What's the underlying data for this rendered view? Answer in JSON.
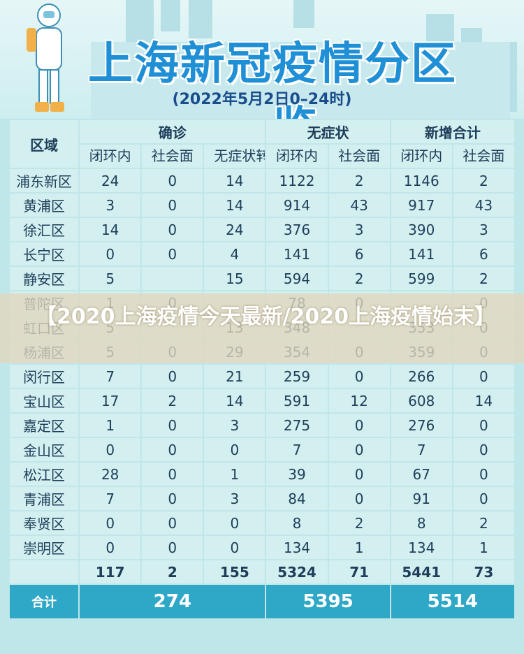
{
  "header": {
    "title": "上海新冠疫情分区一览",
    "date": "(2022年5月2日0–24时)"
  },
  "table": {
    "region_label": "区域",
    "groups": [
      "确诊",
      "无症状",
      "新增合计"
    ],
    "sub_headers": [
      "闭环内",
      "社会面",
      "无症状转确诊",
      "闭环内",
      "社会面",
      "闭环内",
      "社会面"
    ],
    "rows": [
      {
        "name": "浦东新区",
        "values": [
          "24",
          "0",
          "14",
          "1122",
          "2",
          "1146",
          "2"
        ]
      },
      {
        "name": "黄浦区",
        "values": [
          "3",
          "0",
          "14",
          "914",
          "43",
          "917",
          "43"
        ]
      },
      {
        "name": "徐汇区",
        "values": [
          "14",
          "0",
          "24",
          "376",
          "3",
          "390",
          "3"
        ]
      },
      {
        "name": "长宁区",
        "values": [
          "0",
          "0",
          "4",
          "141",
          "6",
          "141",
          "6"
        ]
      },
      {
        "name": "静安区",
        "values": [
          "5",
          "",
          "15",
          "594",
          "2",
          "599",
          "2"
        ]
      },
      {
        "name": "普陀区",
        "values": [
          "1",
          "0",
          "",
          "78",
          "0",
          "",
          "0"
        ]
      },
      {
        "name": "虹口区",
        "values": [
          "5",
          "",
          "13",
          "348",
          "",
          "353",
          "0"
        ]
      },
      {
        "name": "杨浦区",
        "values": [
          "5",
          "0",
          "29",
          "354",
          "0",
          "359",
          "0"
        ]
      },
      {
        "name": "闵行区",
        "values": [
          "7",
          "0",
          "21",
          "259",
          "0",
          "266",
          "0"
        ]
      },
      {
        "name": "宝山区",
        "values": [
          "17",
          "2",
          "14",
          "591",
          "12",
          "608",
          "14"
        ]
      },
      {
        "name": "嘉定区",
        "values": [
          "1",
          "0",
          "3",
          "275",
          "0",
          "276",
          "0"
        ]
      },
      {
        "name": "金山区",
        "values": [
          "0",
          "0",
          "0",
          "7",
          "0",
          "7",
          "0"
        ]
      },
      {
        "name": "松江区",
        "values": [
          "28",
          "0",
          "1",
          "39",
          "0",
          "67",
          "0"
        ]
      },
      {
        "name": "青浦区",
        "values": [
          "7",
          "0",
          "3",
          "84",
          "0",
          "91",
          "0"
        ]
      },
      {
        "name": "奉贤区",
        "values": [
          "0",
          "0",
          "0",
          "8",
          "2",
          "8",
          "2"
        ]
      },
      {
        "name": "崇明区",
        "values": [
          "0",
          "0",
          "0",
          "134",
          "1",
          "134",
          "1"
        ]
      }
    ],
    "totals": [
      "117",
      "2",
      "155",
      "5324",
      "71",
      "5441",
      "73"
    ],
    "grand": {
      "label": "合计",
      "values": [
        "274",
        "5395",
        "5514"
      ]
    }
  },
  "overlay": {
    "text": "【2020上海疫情今天最新/2020上海疫情始末】"
  },
  "colors": {
    "header_bg": "#2fa7c7",
    "cell_bg": "#d3efef",
    "highlight_red": "#e26a5c",
    "title_blue": "#1f8fd6"
  }
}
